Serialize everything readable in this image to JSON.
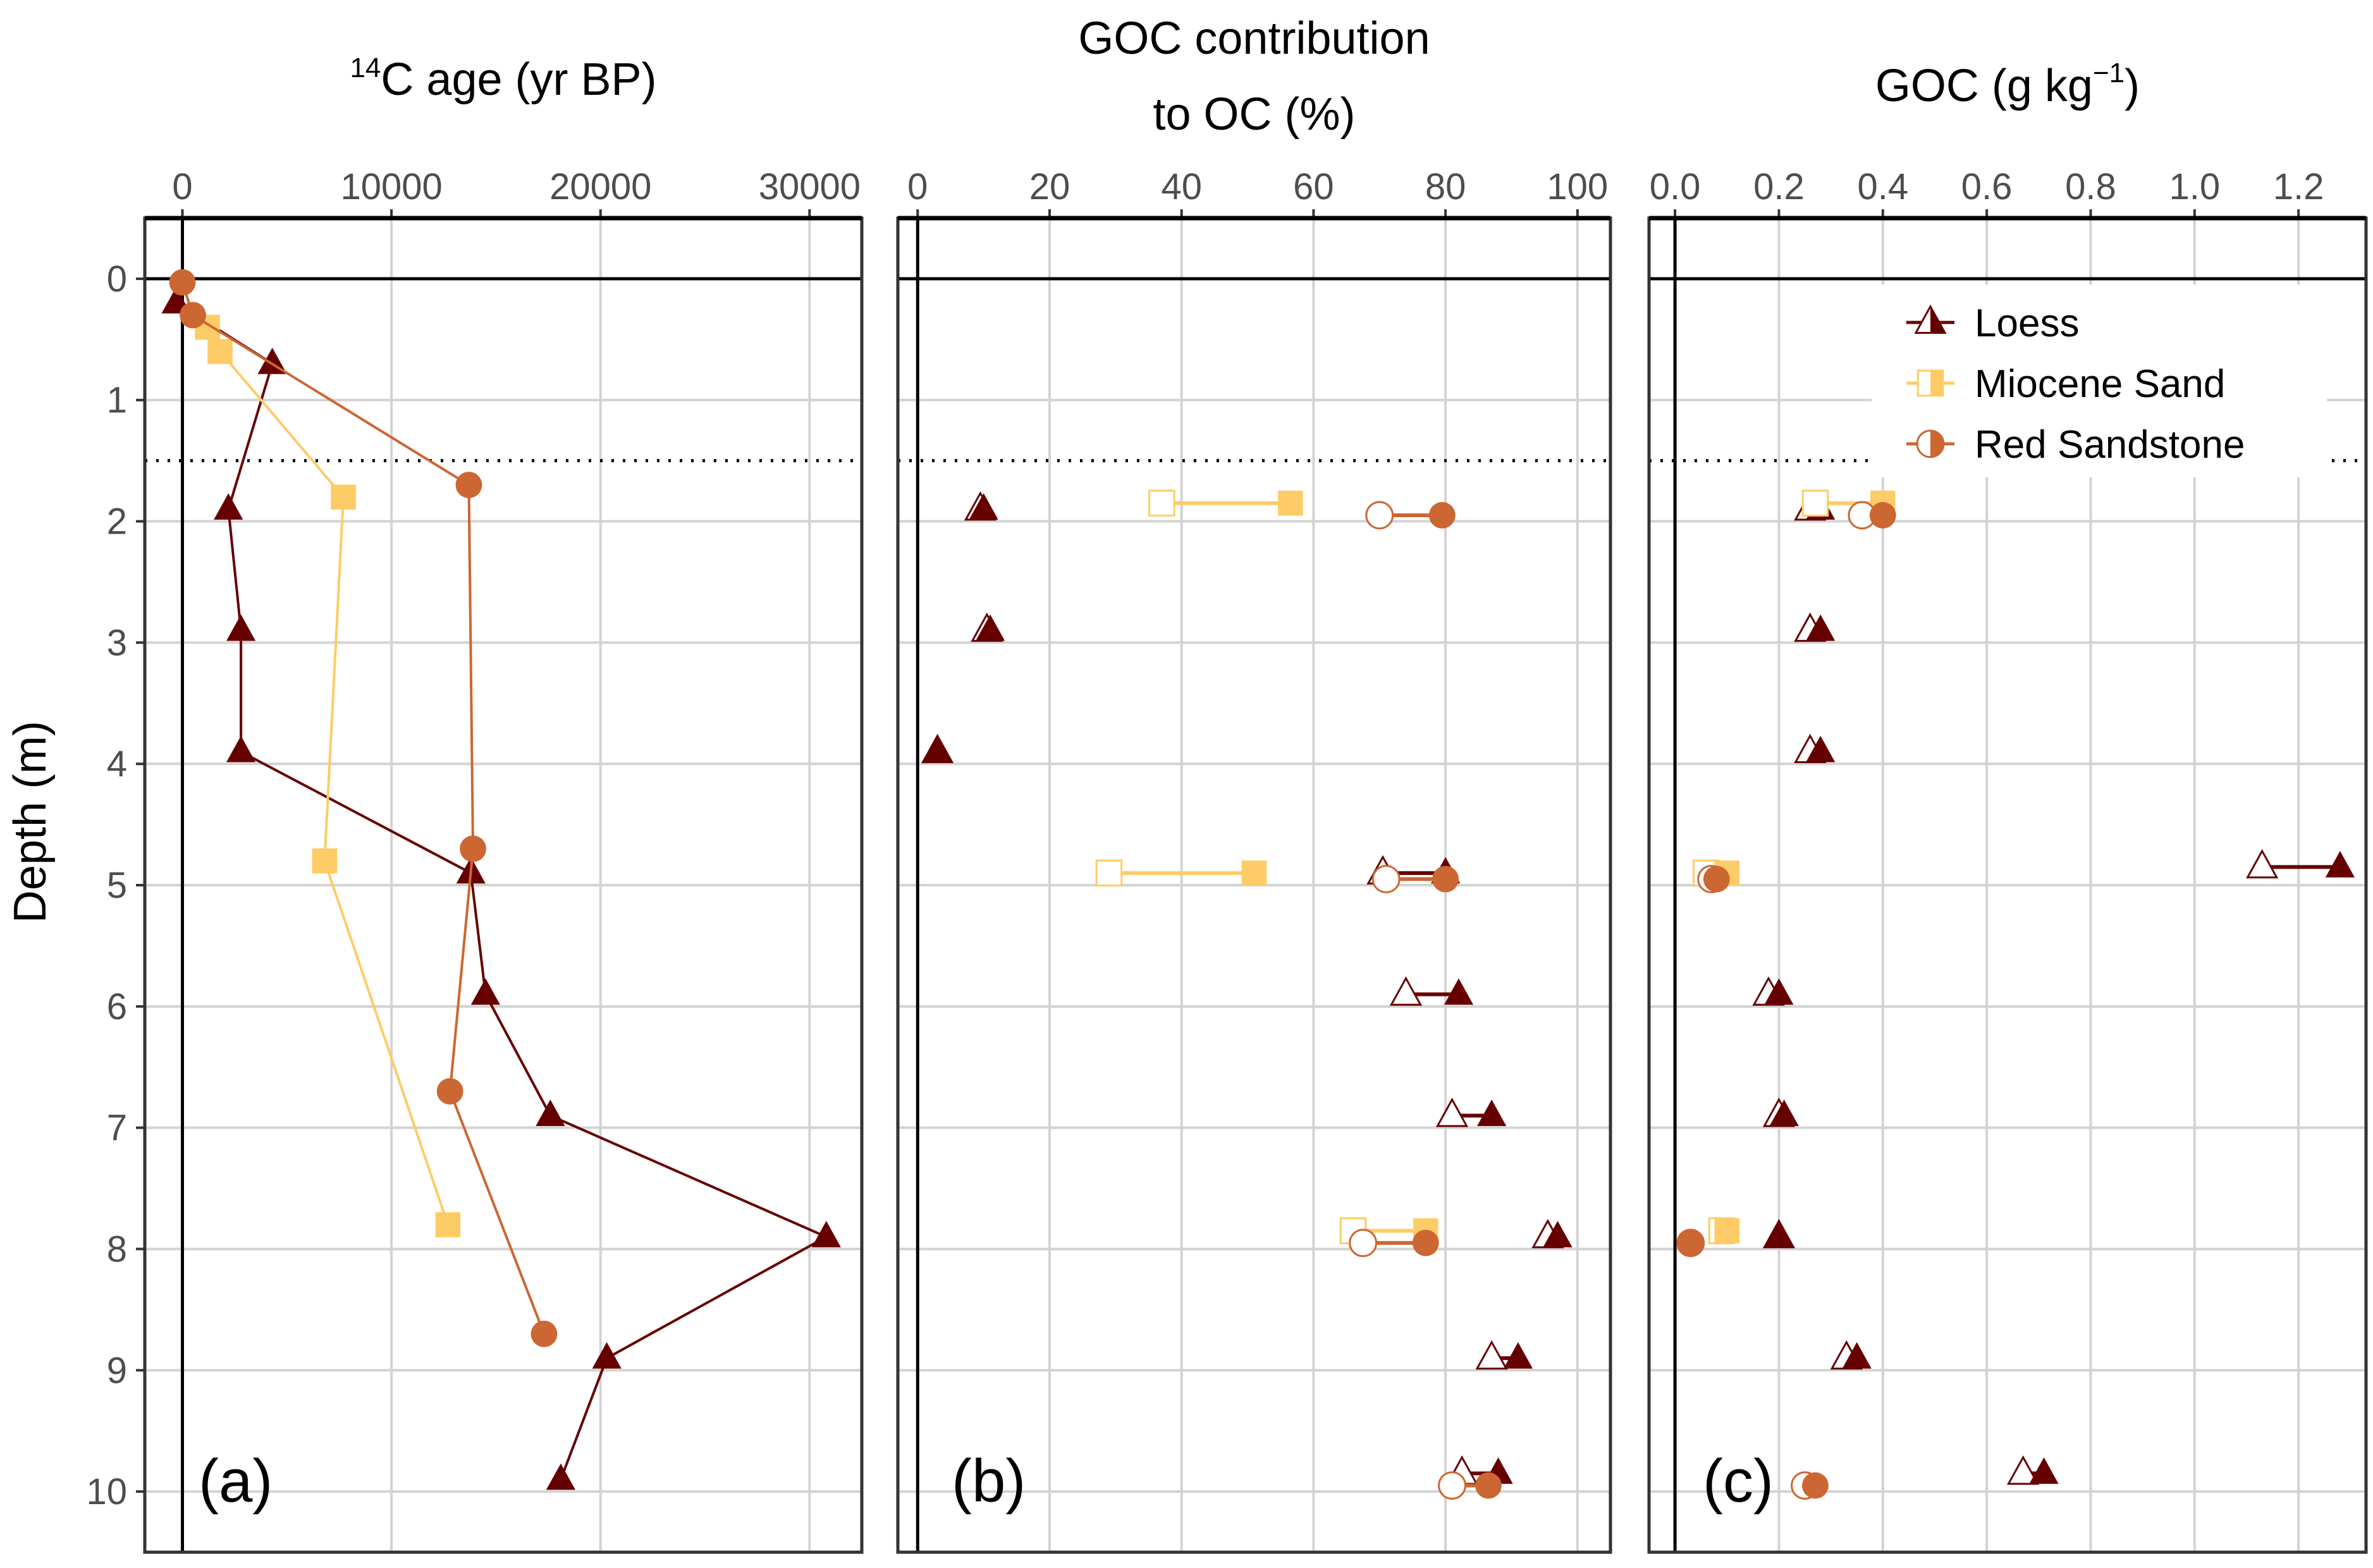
{
  "chart_data": {
    "type": "scatter",
    "ylabel": "Depth (m)",
    "y_ticks": [
      "0",
      "1",
      "2",
      "3",
      "4",
      "5",
      "6",
      "7",
      "8",
      "9",
      "10"
    ],
    "ylim": [
      10.5,
      -0.5
    ],
    "y_reversed": true,
    "reference_depth_dotted": 1.5,
    "grid": true,
    "colors": {
      "Loess": "#660000",
      "Miocene Sand": "#FECC66",
      "Red Sandstone": "#CC6633"
    },
    "legend": {
      "placement": "top-right of panel (c)",
      "entries": [
        {
          "name": "Loess",
          "marker": "triangle"
        },
        {
          "name": "Miocene Sand",
          "marker": "square"
        },
        {
          "name": "Red Sandstone",
          "marker": "circle"
        }
      ]
    },
    "panels": [
      {
        "id": "a",
        "panel_label": "(a)",
        "title_sup": "14",
        "title": "C age (yr BP)",
        "xlim": [
          -1800,
          32500
        ],
        "x_ticks": [
          0,
          10000,
          20000,
          30000
        ],
        "x_tick_labels": [
          "0",
          "10000",
          "20000",
          "30000"
        ],
        "style": "connected-line",
        "series": [
          {
            "name": "Loess",
            "points": [
              {
                "x": -300,
                "depth": 0.2
              },
              {
                "x": 4300,
                "depth": 0.7
              },
              {
                "x": 2200,
                "depth": 1.9
              },
              {
                "x": 2800,
                "depth": 2.9
              },
              {
                "x": 2800,
                "depth": 3.9
              },
              {
                "x": 13800,
                "depth": 4.9
              },
              {
                "x": 14500,
                "depth": 5.9
              },
              {
                "x": 17600,
                "depth": 6.9
              },
              {
                "x": 30800,
                "depth": 7.9
              },
              {
                "x": 20300,
                "depth": 8.9
              },
              {
                "x": 18100,
                "depth": 9.9
              }
            ]
          },
          {
            "name": "Miocene Sand",
            "points": [
              {
                "x": 1200,
                "depth": 0.4
              },
              {
                "x": 1800,
                "depth": 0.6
              },
              {
                "x": 7700,
                "depth": 1.8
              },
              {
                "x": 6800,
                "depth": 4.8
              },
              {
                "x": 12700,
                "depth": 7.8
              }
            ]
          },
          {
            "name": "Red Sandstone",
            "points": [
              {
                "x": 0,
                "depth": 0.03
              },
              {
                "x": 500,
                "depth": 0.3
              },
              {
                "x": 13700,
                "depth": 1.7
              },
              {
                "x": 13900,
                "depth": 4.7
              },
              {
                "x": 12800,
                "depth": 6.7
              },
              {
                "x": 17300,
                "depth": 8.7
              }
            ]
          }
        ]
      },
      {
        "id": "b",
        "panel_label": "(b)",
        "title": "GOC contribution",
        "title_line2": "to OC (%)",
        "xlim": [
          -3,
          105
        ],
        "x_ticks": [
          0,
          20,
          40,
          60,
          80,
          100
        ],
        "x_tick_labels": [
          "0",
          "20",
          "40",
          "60",
          "80",
          "100"
        ],
        "style": "range-min-open-max-filled",
        "series": [
          {
            "name": "Loess",
            "ranges": [
              {
                "depth": 1.9,
                "min": 9.5,
                "max": 10
              },
              {
                "depth": 2.9,
                "min": 10.5,
                "max": 11
              },
              {
                "depth": 3.9,
                "min": 3,
                "max": 3
              },
              {
                "depth": 4.9,
                "min": 70.5,
                "max": 80
              },
              {
                "depth": 5.9,
                "min": 74,
                "max": 82
              },
              {
                "depth": 6.9,
                "min": 81,
                "max": 87
              },
              {
                "depth": 7.9,
                "min": 95.5,
                "max": 97
              },
              {
                "depth": 8.9,
                "min": 87,
                "max": 91
              },
              {
                "depth": 9.85,
                "min": 82.5,
                "max": 88
              }
            ]
          },
          {
            "name": "Miocene Sand",
            "ranges": [
              {
                "depth": 1.85,
                "min": 37,
                "max": 56.5
              },
              {
                "depth": 4.9,
                "min": 29,
                "max": 51
              },
              {
                "depth": 7.85,
                "min": 66,
                "max": 77
              }
            ]
          },
          {
            "name": "Red Sandstone",
            "ranges": [
              {
                "depth": 1.95,
                "min": 70,
                "max": 79.5
              },
              {
                "depth": 4.95,
                "min": 71,
                "max": 80
              },
              {
                "depth": 7.95,
                "min": 67.5,
                "max": 77
              },
              {
                "depth": 9.95,
                "min": 81,
                "max": 86.5
              }
            ]
          }
        ]
      },
      {
        "id": "c",
        "panel_label": "(c)",
        "title": "GOC (g kg",
        "title_sup": "−1",
        "title_end": ")",
        "xlim": [
          -0.05,
          1.33
        ],
        "x_ticks": [
          0,
          0.2,
          0.4,
          0.6,
          0.8,
          1.0,
          1.2
        ],
        "x_tick_labels": [
          "0.0",
          "0.2",
          "0.4",
          "0.6",
          "0.8",
          "1.0",
          "1.2"
        ],
        "style": "range-min-open-max-filled",
        "series": [
          {
            "name": "Loess",
            "ranges": [
              {
                "depth": 1.9,
                "min": 0.26,
                "max": 0.28
              },
              {
                "depth": 2.9,
                "min": 0.26,
                "max": 0.28
              },
              {
                "depth": 3.9,
                "min": 0.26,
                "max": 0.28
              },
              {
                "depth": 4.85,
                "min": 1.13,
                "max": 1.28
              },
              {
                "depth": 5.9,
                "min": 0.18,
                "max": 0.2
              },
              {
                "depth": 6.9,
                "min": 0.2,
                "max": 0.21
              },
              {
                "depth": 7.9,
                "min": 0.2,
                "max": 0.2
              },
              {
                "depth": 8.9,
                "min": 0.33,
                "max": 0.35
              },
              {
                "depth": 9.85,
                "min": 0.67,
                "max": 0.71
              }
            ]
          },
          {
            "name": "Miocene Sand",
            "ranges": [
              {
                "depth": 1.85,
                "min": 0.27,
                "max": 0.4
              },
              {
                "depth": 4.9,
                "min": 0.06,
                "max": 0.1
              },
              {
                "depth": 7.85,
                "min": 0.09,
                "max": 0.1
              }
            ]
          },
          {
            "name": "Red Sandstone",
            "ranges": [
              {
                "depth": 1.95,
                "min": 0.36,
                "max": 0.4
              },
              {
                "depth": 4.95,
                "min": 0.07,
                "max": 0.08
              },
              {
                "depth": 7.95,
                "min": 0.03,
                "max": 0.03
              },
              {
                "depth": 9.95,
                "min": 0.25,
                "max": 0.27
              }
            ]
          }
        ]
      }
    ]
  }
}
